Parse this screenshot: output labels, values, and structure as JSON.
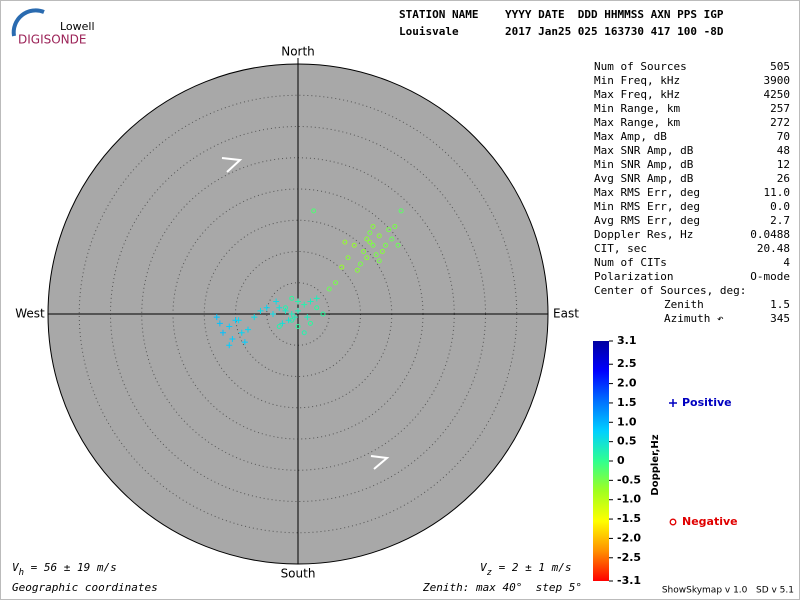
{
  "logo": {
    "top": "Lowell",
    "bottom": "DIGISONDE"
  },
  "header": {
    "labels": "STATION NAME    YYYY DATE  DDD HHMMSS AXN PPS IGP",
    "values": "Louisvale       2017 Jan25 025 163730 417 100 -8D"
  },
  "stats": [
    [
      "Num of Sources",
      "505"
    ],
    [
      "Min Freq, kHz",
      "3900"
    ],
    [
      "Max Freq, kHz",
      "4250"
    ],
    [
      "Min Range, km",
      "257"
    ],
    [
      "Max Range, km",
      "272"
    ],
    [
      "Max Amp, dB",
      "70"
    ],
    [
      "Max SNR Amp, dB",
      "48"
    ],
    [
      "Min SNR Amp, dB",
      "12"
    ],
    [
      "Avg SNR Amp, dB",
      "26"
    ],
    [
      "Max RMS Err, deg",
      "11.0"
    ],
    [
      "Min RMS Err, deg",
      "0.0"
    ],
    [
      "Avg RMS Err, deg",
      "2.7"
    ],
    [
      "Doppler Res, Hz",
      "0.0488"
    ],
    [
      "CIT, sec",
      "20.48"
    ],
    [
      "Num of CITs",
      "4"
    ],
    [
      "Polarization",
      "O-mode"
    ]
  ],
  "center": {
    "title": "Center of Sources, deg:",
    "rows": [
      [
        "Zenith",
        "1.5"
      ],
      [
        "Azimuth ↶",
        "345"
      ]
    ]
  },
  "footer": {
    "vh": {
      "symbol": "V",
      "sub": "h",
      "text": " = 56 ± 19 m/s"
    },
    "vz": {
      "symbol": "V",
      "sub": "z",
      "text": " = 2 ± 1 m/s"
    },
    "coords": "Geographic coordinates",
    "zenith": "Zenith: max 40°  step 5°",
    "version": "ShowSkymap v 1.0   SD v 5.1"
  },
  "chart_data": {
    "type": "polar-scatter",
    "directions": {
      "north": "North",
      "south": "South",
      "east": "East",
      "west": "West"
    },
    "rlim": [
      0,
      40
    ],
    "rticks": [
      5,
      10,
      15,
      20,
      25,
      30,
      35
    ],
    "grid": true,
    "colorbar": {
      "title": "Doppler,Hz",
      "lim": [
        -3.1,
        3.1
      ],
      "ticks": [
        3.1,
        2.5,
        {
          "value": 2,
          "label": "2.0"
        },
        1.5,
        {
          "value": 1,
          "label": "1.0"
        },
        0.5,
        0,
        -0.5,
        {
          "value": -1,
          "label": "-1.0"
        },
        -1.5,
        {
          "value": -2,
          "label": "-2.0"
        },
        -2.5,
        -3.1
      ],
      "colors": [
        "#0000a0",
        "#0000ff",
        "#0070ff",
        "#00d0ff",
        "#30ff90",
        "#a0ff20",
        "#ffff00",
        "#ff9000",
        "#ff0000"
      ]
    },
    "series": [
      {
        "name": "Positive",
        "marker": "plus",
        "color": "#0000c0",
        "x": [
          -1,
          -2,
          0,
          -1.5,
          -0.5,
          -3,
          1,
          2,
          -4,
          -2.5,
          1.5,
          0,
          -3.5,
          3,
          -5,
          -10,
          -11,
          -12,
          -9,
          -10.5,
          -9.5,
          -8,
          -12.5,
          -8.5,
          -11,
          -13,
          -7,
          -6
        ],
        "y": [
          0,
          0.5,
          0.5,
          -1,
          -0.5,
          1,
          1.5,
          2,
          0,
          -1.5,
          -0.5,
          2,
          2,
          2.5,
          1,
          -1,
          -2,
          -3,
          -3,
          -4,
          -1,
          -2.5,
          -1.5,
          -4.5,
          -5,
          -0.5,
          -0.5,
          0.5
        ],
        "doppler": [
          0.3,
          0.4,
          0.3,
          0.5,
          0.3,
          0.5,
          0.2,
          0.3,
          0.6,
          0.5,
          0.3,
          0.2,
          0.6,
          0.3,
          0.7,
          0.8,
          0.8,
          0.9,
          0.7,
          0.8,
          0.7,
          0.7,
          0.9,
          0.8,
          0.8,
          0.9,
          0.6,
          0.6
        ]
      },
      {
        "name": "Negative",
        "marker": "circle",
        "color": "#e00000",
        "x": [
          11,
          12,
          13,
          14,
          10.5,
          12.5,
          13.5,
          15,
          11.5,
          9,
          8,
          10,
          14.5,
          12,
          16,
          7,
          9.5,
          6,
          5,
          7.5,
          13,
          11,
          15.5,
          16.5,
          2.5,
          11.5,
          -1,
          0,
          2,
          -2,
          3,
          1,
          -3,
          4,
          -1
        ],
        "y": [
          12,
          11,
          12.5,
          11,
          10,
          9.5,
          10,
          12,
          13,
          11,
          9,
          8,
          13.5,
          14,
          11,
          7.5,
          7,
          5,
          4,
          11.5,
          8.5,
          9,
          14,
          16.5,
          16.5,
          11.5,
          -1,
          -2,
          -1.5,
          1,
          1,
          -3,
          -2,
          0,
          2.5
        ],
        "doppler": [
          -0.6,
          -0.5,
          -0.6,
          -0.5,
          -0.6,
          -0.5,
          -0.6,
          -0.4,
          -0.5,
          -0.7,
          -0.6,
          -0.5,
          -0.5,
          -0.6,
          -0.4,
          -0.7,
          -0.6,
          -0.5,
          -0.4,
          -0.7,
          -0.5,
          -0.6,
          -0.5,
          -0.3,
          -0.2,
          -0.6,
          0.2,
          0.1,
          0.1,
          0.2,
          0.1,
          0.2,
          0.2,
          0.1,
          0.1
        ]
      }
    ]
  }
}
